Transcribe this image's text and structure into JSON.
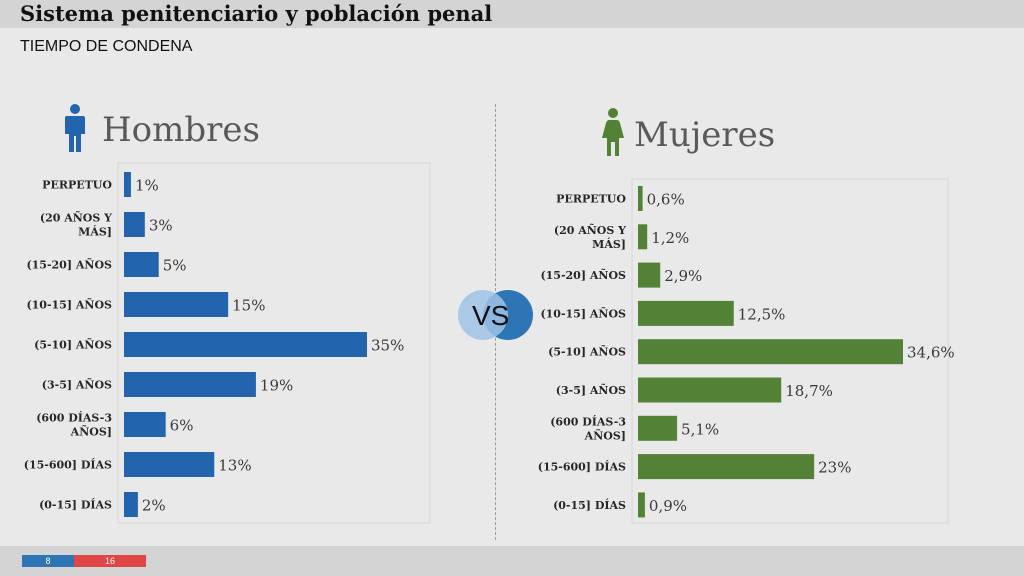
{
  "header": {
    "title": "Sistema penitenciario y población penal",
    "subtitle": "TIEMPO DE CONDENA"
  },
  "vs_label": "VS",
  "footer": {
    "page_left": "8",
    "page_right": "16"
  },
  "colors": {
    "hombres": "#2264ad",
    "mujeres": "#538135",
    "accent_blue": "#2e75b6",
    "accent_red": "#e04646"
  },
  "icons": {
    "hombres": "man-icon",
    "mujeres": "woman-icon"
  },
  "chart_data": [
    {
      "type": "bar",
      "orientation": "horizontal",
      "title": "Hombres",
      "categories": [
        "PERPETUO",
        "(20 AÑOS Y MÁS]",
        "(15-20] AÑOS",
        "(10-15] AÑOS",
        "(5-10] AÑOS",
        "(3-5] AÑOS",
        "(600 DÍAS-3 AÑOS]",
        "(15-600] DÍAS",
        "(0-15] DÍAS"
      ],
      "values": [
        1,
        3,
        5,
        15,
        35,
        19,
        6,
        13,
        2
      ],
      "data_labels": [
        "1%",
        "3%",
        "5%",
        "15%",
        "35%",
        "19%",
        "6%",
        "13%",
        "2%"
      ],
      "unit": "%",
      "xlim": [
        0,
        35
      ]
    },
    {
      "type": "bar",
      "orientation": "horizontal",
      "title": "Mujeres",
      "categories": [
        "PERPETUO",
        "(20 AÑOS Y MÁS]",
        "(15-20] AÑOS",
        "(10-15] AÑOS",
        "(5-10] AÑOS",
        "(3-5] AÑOS",
        "(600 DÍAS-3 AÑOS]",
        "(15-600] DÍAS",
        "(0-15] DÍAS"
      ],
      "values": [
        0.6,
        1.2,
        2.9,
        12.5,
        34.6,
        18.7,
        5.1,
        23,
        0.9
      ],
      "data_labels": [
        "0,6%",
        "1,2%",
        "2,9%",
        "12,5%",
        "34,6%",
        "18,7%",
        "5,1%",
        "23%",
        "0,9%"
      ],
      "unit": "%",
      "xlim": [
        0,
        34.6
      ]
    }
  ]
}
